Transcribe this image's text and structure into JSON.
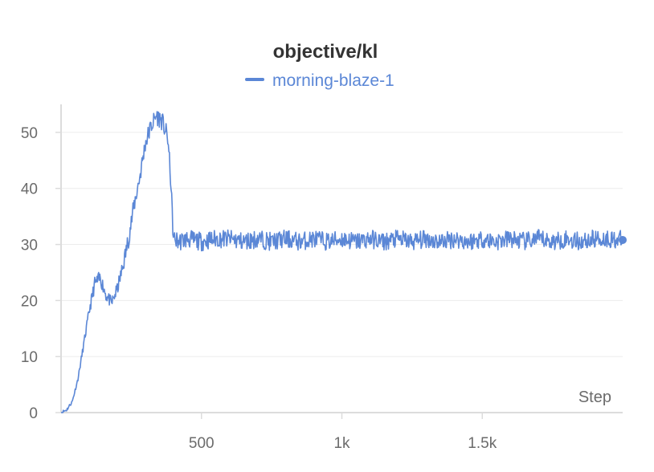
{
  "chart_data": {
    "type": "line",
    "title": "objective/kl",
    "xlabel": "Step",
    "ylabel": "",
    "xlim": [
      0,
      2000
    ],
    "ylim": [
      0,
      55
    ],
    "x_ticks": [
      500,
      1000,
      1500
    ],
    "x_tick_labels": [
      "500",
      "1k",
      "1.5k"
    ],
    "y_ticks": [
      0,
      10,
      20,
      30,
      40,
      50
    ],
    "y_tick_labels": [
      "0",
      "10",
      "20",
      "30",
      "40",
      "50"
    ],
    "grid": true,
    "legend_position": "top-center",
    "series": [
      {
        "name": "morning-blaze-1",
        "color": "#5b87d6",
        "x": [
          0,
          20,
          40,
          60,
          80,
          100,
          120,
          140,
          160,
          180,
          200,
          220,
          240,
          260,
          280,
          300,
          320,
          340,
          360,
          380,
          390,
          400,
          420,
          450,
          500,
          550,
          600,
          650,
          700,
          750,
          800,
          850,
          900,
          950,
          1000,
          1050,
          1100,
          1150,
          1200,
          1250,
          1300,
          1350,
          1400,
          1450,
          1500,
          1550,
          1600,
          1650,
          1700,
          1750,
          1800,
          1850,
          1900,
          1950,
          2000
        ],
        "y": [
          0,
          0.5,
          2,
          6,
          12,
          18,
          23,
          24,
          21,
          19.5,
          22,
          26,
          31,
          37,
          42,
          48,
          51,
          53,
          52,
          49,
          42,
          31,
          30.5,
          31,
          30.5,
          31,
          31,
          30.5,
          31,
          30.5,
          31,
          30.5,
          31,
          30.5,
          31,
          30.5,
          31,
          30.5,
          31,
          30.5,
          31,
          30.5,
          31,
          30.5,
          31,
          30.5,
          31,
          30.5,
          31,
          30.5,
          31,
          30.5,
          31,
          31,
          30.8
        ]
      }
    ]
  }
}
